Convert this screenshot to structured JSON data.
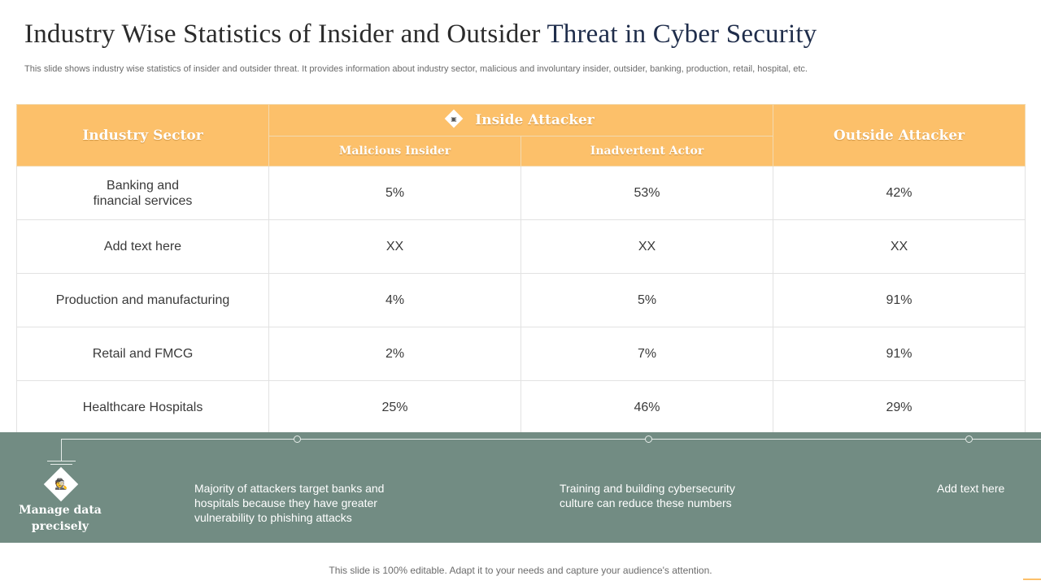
{
  "title": {
    "main": "Industry Wise Statistics of Insider and Outsider",
    "accent": "Threat in Cyber Security"
  },
  "subtitle": "This slide shows industry wise statistics of insider and outsider threat. It provides information about industry sector, malicious and involuntary insider, outsider, banking, production, retail, hospital, etc.",
  "table": {
    "headers": {
      "sector": "Industry Sector",
      "inside": "Inside Attacker",
      "malicious": "Malicious Insider",
      "inadvertent": "Inadvertent Actor",
      "outside": "Outside Attacker"
    },
    "rows": [
      {
        "sector_line1": "Banking and",
        "sector_line2": "financial services",
        "malicious": "5%",
        "inadvertent": "53%",
        "outside": "42%"
      },
      {
        "sector_line1": "Add text here",
        "sector_line2": "",
        "malicious": "XX",
        "inadvertent": "XX",
        "outside": "XX"
      },
      {
        "sector_line1": "Production and manufacturing",
        "sector_line2": "",
        "malicious": "4%",
        "inadvertent": "5%",
        "outside": "91%"
      },
      {
        "sector_line1": "Retail and FMCG",
        "sector_line2": "",
        "malicious": "2%",
        "inadvertent": "7%",
        "outside": "91%"
      },
      {
        "sector_line1": "Healthcare Hospitals",
        "sector_line2": "",
        "malicious": "25%",
        "inadvertent": "46%",
        "outside": "29%"
      }
    ]
  },
  "band": {
    "label_line1": "Manage data",
    "label_line2": "precisely",
    "icon": "hacker-icon",
    "notes": [
      {
        "line1": "Majority of attackers target banks and",
        "line2": "hospitals because they have greater",
        "line3": "vulnerability to phishing attacks"
      },
      {
        "line1": "Training and building cybersecurity",
        "line2": "culture can reduce these numbers",
        "line3": ""
      },
      {
        "line1": "Add text here",
        "line2": "",
        "line3": ""
      }
    ]
  },
  "footer": "This slide is 100% editable. Adapt it to your needs and capture your audience's attention.",
  "colors": {
    "header": "#fcc06a",
    "band": "#728c83",
    "title_accent": "#1f2d4b"
  }
}
